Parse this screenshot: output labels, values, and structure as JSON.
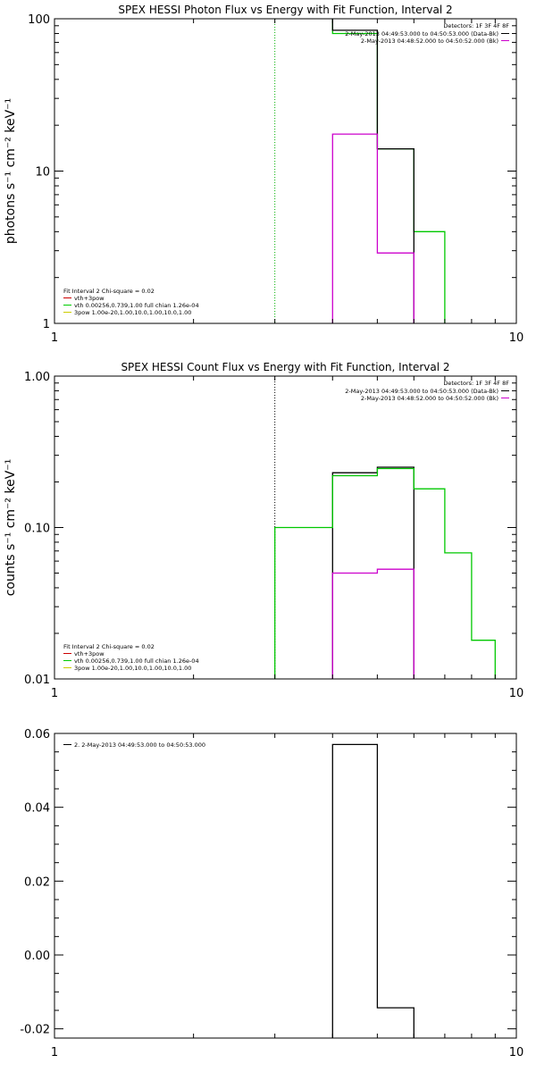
{
  "chart_data": [
    {
      "type": "line",
      "title": "SPEX HESSI Photon Flux vs Energy with Fit Function, Interval 2",
      "ylabel": "photons s⁻¹ cm⁻² keV⁻¹",
      "xscale": "log",
      "yscale": "log",
      "xlim": [
        1,
        10
      ],
      "ylim": [
        1,
        100
      ],
      "xticks": [
        {
          "v": 1,
          "label": "1"
        },
        {
          "v": 10,
          "label": "10"
        }
      ],
      "yticks": [
        {
          "v": 1,
          "label": "1"
        },
        {
          "v": 10,
          "label": "10"
        },
        {
          "v": 100,
          "label": "100"
        }
      ],
      "vline": {
        "x": 3,
        "style": "dotted",
        "color": "#00b000"
      },
      "legend_right": {
        "header": "Detectors: 1F 3F 4F 8F",
        "entries": [
          {
            "text": "2-May-2013 04:49:53.000 to 04:50:53.000 (Data-Bk)",
            "color": "#000000"
          },
          {
            "text": "2-May-2013 04:48:52.000 to 04:50:52.000 (Bk)",
            "color": "#cc00cc"
          }
        ]
      },
      "legend_left": {
        "header": "Fit Interval  2   Chi-square = 0.02",
        "entries": [
          {
            "text": "vth+3pow",
            "color": "#cc0000"
          },
          {
            "text": "vth 0.00256,0.739,1.00   full chian 1.26e-04",
            "color": "#00cc00"
          },
          {
            "text": "3pow 1.00e-20,1.00,10.0,1.00,10.0,1.00",
            "color": "#cccc00"
          }
        ]
      },
      "series": [
        {
          "color": "#00c800",
          "bins": [
            [
              4,
              5,
              80
            ],
            [
              5,
              6,
              14
            ],
            [
              6,
              7,
              4
            ]
          ],
          "steps": [
            [
              3,
              200
            ],
            [
              4,
              200
            ],
            [
              4,
              80
            ],
            [
              5,
              80
            ],
            [
              5,
              14
            ],
            [
              6,
              14
            ],
            [
              6,
              4
            ],
            [
              7,
              4
            ],
            [
              7,
              0.5
            ]
          ]
        },
        {
          "color": "#000000",
          "bins": [
            [
              4,
              5,
              84
            ],
            [
              5,
              6,
              14
            ]
          ],
          "steps": [
            [
              4,
              200
            ],
            [
              4,
              84
            ],
            [
              5,
              84
            ],
            [
              5,
              14
            ],
            [
              6,
              14
            ],
            [
              6,
              0.5
            ]
          ]
        },
        {
          "color": "#cc00cc",
          "bins": [
            [
              4,
              5,
              17.5
            ],
            [
              5,
              6,
              2.9
            ]
          ],
          "steps": [
            [
              4,
              0.5
            ],
            [
              4,
              17.5
            ],
            [
              5,
              17.5
            ],
            [
              5,
              2.9
            ],
            [
              6,
              2.9
            ],
            [
              6,
              0.5
            ]
          ]
        }
      ]
    },
    {
      "type": "line",
      "title": "SPEX HESSI Count Flux vs Energy with Fit Function, Interval 2",
      "ylabel": "counts s⁻¹ cm⁻² keV⁻¹",
      "xscale": "log",
      "yscale": "log",
      "xlim": [
        1,
        10
      ],
      "ylim": [
        0.01,
        1
      ],
      "xticks": [
        {
          "v": 1,
          "label": "1"
        },
        {
          "v": 10,
          "label": "10"
        }
      ],
      "yticks": [
        {
          "v": 0.01,
          "label": "0.01"
        },
        {
          "v": 0.1,
          "label": "0.10"
        },
        {
          "v": 1,
          "label": "1.00"
        }
      ],
      "vline": {
        "x": 3,
        "style": "dotted",
        "color": "#000000"
      },
      "legend_right": {
        "header": "Detectors: 1F 3F 4F 8F",
        "entries": [
          {
            "text": "2-May-2013 04:49:53.000 to 04:50:53.000 (Data-Bk)",
            "color": "#000000"
          },
          {
            "text": "2-May-2013 04:48:52.000 to 04:50:52.000 (Bk)",
            "color": "#cc00cc"
          }
        ]
      },
      "legend_left": {
        "header": "Fit Interval  2   Chi-square = 0.02",
        "entries": [
          {
            "text": "vth+3pow",
            "color": "#cc0000"
          },
          {
            "text": "vth 0.00256,0.739,1.00   full chian 1.26e-04",
            "color": "#00cc00"
          },
          {
            "text": "3pow 1.00e-20,1.00,10.0,1.00,10.0,1.00",
            "color": "#cccc00"
          }
        ]
      },
      "series": [
        {
          "color": "#000000",
          "bins": [
            [
              4,
              5,
              0.23
            ],
            [
              5,
              6,
              0.25
            ]
          ],
          "steps": [
            [
              4,
              0.005
            ],
            [
              4,
              0.23
            ],
            [
              5,
              0.23
            ],
            [
              5,
              0.25
            ],
            [
              6,
              0.25
            ],
            [
              6,
              0.005
            ]
          ]
        },
        {
          "color": "#cc00cc",
          "bins": [
            [
              4,
              5,
              0.05
            ],
            [
              5,
              6,
              0.053
            ]
          ],
          "steps": [
            [
              4,
              0.005
            ],
            [
              4,
              0.05
            ],
            [
              5,
              0.05
            ],
            [
              5,
              0.053
            ],
            [
              6,
              0.053
            ],
            [
              6,
              0.005
            ]
          ]
        },
        {
          "color": "#00c800",
          "bins": [
            [
              3,
              4,
              0.1
            ],
            [
              4,
              5,
              0.22
            ],
            [
              5,
              6,
              0.245
            ],
            [
              6,
              7,
              0.18
            ],
            [
              7,
              8,
              0.068
            ],
            [
              8,
              9,
              0.018
            ]
          ],
          "steps": [
            [
              3,
              0.005
            ],
            [
              3,
              0.1
            ],
            [
              4,
              0.1
            ],
            [
              4,
              0.22
            ],
            [
              5,
              0.22
            ],
            [
              5,
              0.245
            ],
            [
              6,
              0.245
            ],
            [
              6,
              0.18
            ],
            [
              7,
              0.18
            ],
            [
              7,
              0.068
            ],
            [
              8,
              0.068
            ],
            [
              8,
              0.018
            ],
            [
              9,
              0.018
            ],
            [
              9,
              0.005
            ]
          ]
        }
      ]
    },
    {
      "type": "line",
      "title": "",
      "ylabel": "",
      "xscale": "log",
      "yscale": "linear",
      "xlim": [
        1,
        10
      ],
      "ylim": [
        -0.0225,
        0.06
      ],
      "xticks": [
        {
          "v": 1,
          "label": "1"
        },
        {
          "v": 10,
          "label": "10"
        }
      ],
      "yticks": [
        {
          "v": -0.02,
          "label": "-0.02"
        },
        {
          "v": 0,
          "label": "0.00"
        },
        {
          "v": 0.02,
          "label": "0.02"
        },
        {
          "v": 0.04,
          "label": "0.04"
        },
        {
          "v": 0.06,
          "label": "0.06"
        }
      ],
      "vline": null,
      "legend_right": null,
      "legend_left": null,
      "legend_top": {
        "text": "2.  2-May-2013 04:49:53.000 to 04:50:53.000",
        "color": "#000000"
      },
      "series": [
        {
          "color": "#000000",
          "bins": [
            [
              4,
              5,
              0.057
            ],
            [
              5,
              6,
              -0.0143
            ]
          ],
          "steps": [
            [
              4,
              -0.03
            ],
            [
              4,
              0.057
            ],
            [
              5,
              0.057
            ],
            [
              5,
              -0.0143
            ],
            [
              6,
              -0.0143
            ],
            [
              6,
              -0.03
            ]
          ]
        }
      ]
    }
  ]
}
